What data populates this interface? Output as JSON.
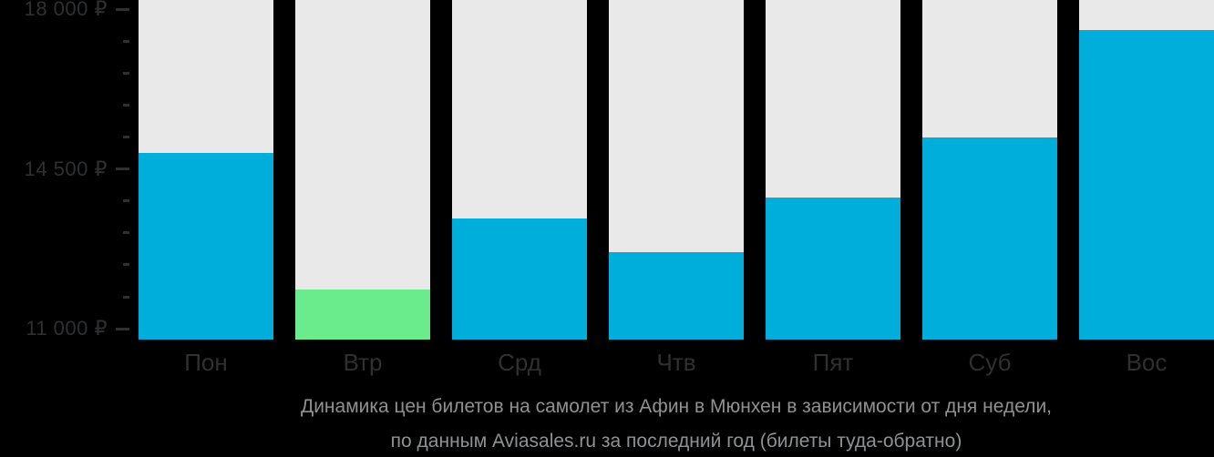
{
  "caption": {
    "line1": "Динамика цен билетов на самолет из Афин в Мюнхен в зависимости от дня недели,",
    "line2": "по данным Aviasales.ru за последний год (билеты туда-обратно)"
  },
  "colors": {
    "background": "#000000",
    "bar_default": "#00AEDC",
    "bar_highlight": "#6BEC8C",
    "bar_track": "#E9E9E9",
    "axis_text": "#2F3032",
    "caption_text": "#8F9193"
  },
  "chart_data": {
    "type": "bar",
    "categories": [
      "Пон",
      "Втр",
      "Срд",
      "Чтв",
      "Пят",
      "Суб",
      "Вос"
    ],
    "values": [
      14860,
      11870,
      13420,
      12680,
      13880,
      15190,
      17550
    ],
    "unit": "₽",
    "highlight_index": 1,
    "title": "Динамика цен билетов на самолет из Афин в Мюнхен в зависимости от дня недели, по данным Aviasales.ru за последний год (билеты туда-обратно)",
    "xlabel": "",
    "ylabel": "",
    "grid": false,
    "legend": false,
    "y_axis": {
      "major_ticks": [
        {
          "value": 18000,
          "label": "18 000 ₽"
        },
        {
          "value": 14500,
          "label": "14 500 ₽"
        },
        {
          "value": 11000,
          "label": "11 000 ₽"
        }
      ],
      "minor_ticks": [
        17300,
        16600,
        15900,
        15200,
        13800,
        13100,
        12400,
        11700
      ],
      "render_range": [
        10763,
        18207
      ]
    }
  }
}
